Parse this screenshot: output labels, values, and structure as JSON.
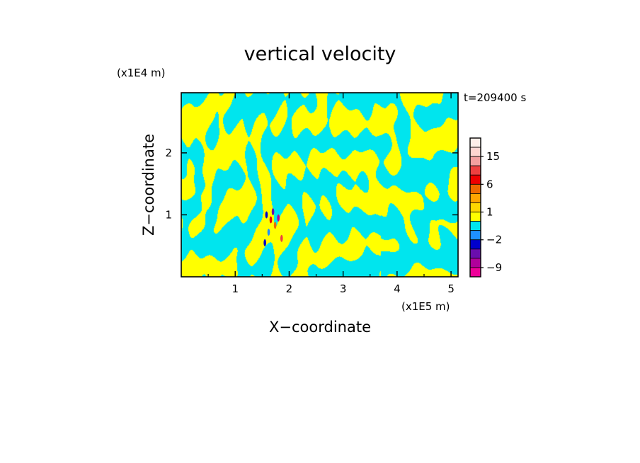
{
  "chart_data": {
    "type": "heatmap",
    "title": "vertical velocity",
    "xlabel": "X−coordinate",
    "ylabel": "Z−coordinate",
    "x_unit": "(x1E5 m)",
    "y_unit": "(x1E4 m)",
    "time_label": "t=209400 s",
    "xlim": [
      0,
      5.13
    ],
    "ylim": [
      0,
      2.97
    ],
    "x_ticks": [
      {
        "value": 1,
        "label": "1"
      },
      {
        "value": 2,
        "label": "2"
      },
      {
        "value": 3,
        "label": "3"
      },
      {
        "value": 4,
        "label": "4"
      },
      {
        "value": 5,
        "label": "5"
      }
    ],
    "y_ticks": [
      {
        "value": 1,
        "label": "1"
      },
      {
        "value": 2,
        "label": "2"
      }
    ],
    "dominant_colors": {
      "positive": "#ffff00",
      "negative": "#00e5ee"
    },
    "colorbar": {
      "levels": [
        {
          "low": 18,
          "high": 21,
          "color": "#ffeee8"
        },
        {
          "low": 15,
          "high": 18,
          "color": "#ffd5d0"
        },
        {
          "low": 12,
          "high": 15,
          "color": "#f4a0a0"
        },
        {
          "low": 9,
          "high": 12,
          "color": "#ee4040"
        },
        {
          "low": 6,
          "high": 9,
          "color": "#ee0000"
        },
        {
          "low": 3,
          "high": 6,
          "color": "#ee6a00"
        },
        {
          "low": 2,
          "high": 3,
          "color": "#ffa500"
        },
        {
          "low": 1,
          "high": 2,
          "color": "#ffd700"
        },
        {
          "low": 0,
          "high": 1,
          "color": "#ffff00"
        },
        {
          "low": -1,
          "high": 0,
          "color": "#00e5ee"
        },
        {
          "low": -2,
          "high": -1,
          "color": "#1e90ff"
        },
        {
          "low": -3,
          "high": -2,
          "color": "#0000cd"
        },
        {
          "low": -6,
          "high": -3,
          "color": "#6a0dad"
        },
        {
          "low": -9,
          "high": -6,
          "color": "#b0009b"
        },
        {
          "low": -12,
          "high": -9,
          "color": "#ee0099"
        }
      ],
      "tick_labels": [
        {
          "value": 15,
          "label": "15"
        },
        {
          "value": 6,
          "label": "6"
        },
        {
          "value": 1,
          "label": "1"
        },
        {
          "value": -2,
          "label": "−2"
        },
        {
          "value": -9,
          "label": "−9"
        }
      ]
    }
  }
}
